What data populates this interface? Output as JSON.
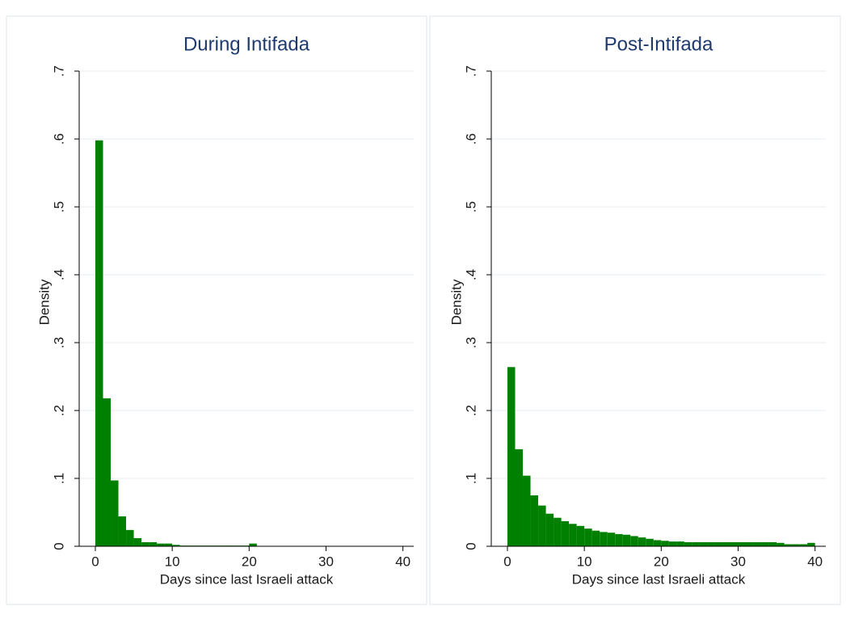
{
  "chart_data": [
    {
      "type": "histogram",
      "title": "During Intifada",
      "x_label": "Days since last Israeli attack",
      "y_label": "Density",
      "color": "#008000",
      "grid": true,
      "bins": [
        0,
        1,
        2,
        3,
        4,
        5,
        6,
        7,
        8,
        9,
        10,
        11,
        12,
        13,
        14,
        15,
        16,
        17,
        18,
        19,
        20,
        21,
        22,
        23,
        24,
        25,
        26,
        27,
        28,
        29,
        30,
        31,
        32,
        33,
        34,
        35,
        36,
        37,
        38,
        39,
        40
      ],
      "values": [
        0.598,
        0.218,
        0.097,
        0.044,
        0.024,
        0.012,
        0.006,
        0.006,
        0.004,
        0.004,
        0.002,
        0.001,
        0.001,
        0.001,
        0.001,
        0.001,
        0.001,
        0.001,
        0.001,
        0.001,
        0.004,
        0,
        0,
        0,
        0,
        0,
        0,
        0,
        0,
        0,
        0,
        0,
        0,
        0,
        0,
        0,
        0,
        0,
        0,
        0
      ],
      "xlim": [
        -2.1,
        41.4
      ],
      "xticks": [
        0,
        10,
        20,
        30,
        40
      ],
      "ylim": [
        0,
        0.7
      ],
      "yticks": [
        0,
        {
          "value": 0.1,
          "label": ".1"
        },
        {
          "value": 0.2,
          "label": ".2"
        },
        {
          "value": 0.3,
          "label": ".3"
        },
        {
          "value": 0.4,
          "label": ".4"
        },
        {
          "value": 0.5,
          "label": ".5"
        },
        {
          "value": 0.6,
          "label": ".6"
        },
        {
          "value": 0.7,
          "label": ".7"
        }
      ]
    },
    {
      "type": "histogram",
      "title": "Post-Intifada",
      "x_label": "Days since last Israeli attack",
      "y_label": "Density",
      "color": "#008000",
      "grid": true,
      "bins": [
        0,
        1,
        2,
        3,
        4,
        5,
        6,
        7,
        8,
        9,
        10,
        11,
        12,
        13,
        14,
        15,
        16,
        17,
        18,
        19,
        20,
        21,
        22,
        23,
        24,
        25,
        26,
        27,
        28,
        29,
        30,
        31,
        32,
        33,
        34,
        35,
        36,
        37,
        38,
        39,
        40
      ],
      "values": [
        0.264,
        0.143,
        0.104,
        0.075,
        0.06,
        0.048,
        0.042,
        0.037,
        0.033,
        0.03,
        0.026,
        0.023,
        0.021,
        0.02,
        0.018,
        0.017,
        0.015,
        0.013,
        0.011,
        0.009,
        0.008,
        0.007,
        0.007,
        0.006,
        0.006,
        0.006,
        0.006,
        0.006,
        0.006,
        0.006,
        0.006,
        0.006,
        0.006,
        0.006,
        0.006,
        0.005,
        0.003,
        0.003,
        0.003,
        0.005
      ],
      "xlim": [
        -2.1,
        41.4
      ],
      "xticks": [
        0,
        10,
        20,
        30,
        40
      ],
      "ylim": [
        0,
        0.7
      ],
      "yticks": [
        0,
        {
          "value": 0.1,
          "label": ".1"
        },
        {
          "value": 0.2,
          "label": ".2"
        },
        {
          "value": 0.3,
          "label": ".3"
        },
        {
          "value": 0.4,
          "label": ".4"
        },
        {
          "value": 0.5,
          "label": ".5"
        },
        {
          "value": 0.6,
          "label": ".6"
        },
        {
          "value": 0.7,
          "label": ".7"
        }
      ]
    }
  ]
}
